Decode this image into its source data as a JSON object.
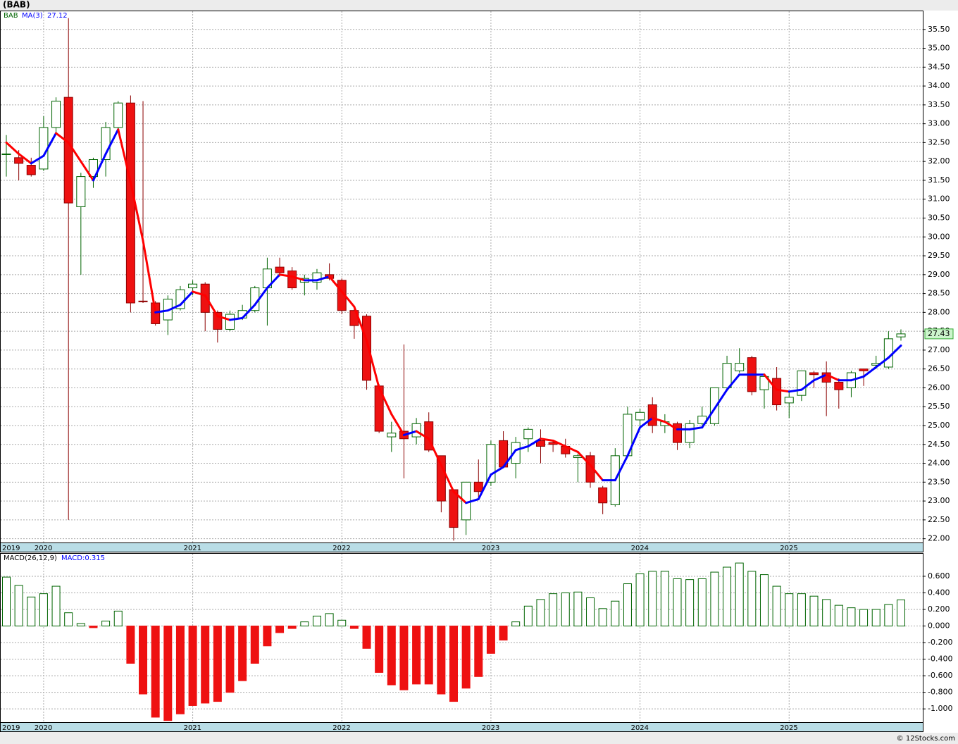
{
  "chart_data": [
    {
      "type": "candlestick",
      "title": "(BAB)",
      "categories": [
        "2019",
        null,
        null,
        "2020",
        null,
        null,
        null,
        null,
        null,
        null,
        null,
        null,
        null,
        null,
        null,
        "2021",
        null,
        null,
        null,
        null,
        null,
        null,
        null,
        null,
        null,
        null,
        null,
        "2022",
        null,
        null,
        null,
        null,
        null,
        null,
        null,
        null,
        null,
        null,
        null,
        "2023",
        null,
        null,
        null,
        null,
        null,
        null,
        null,
        null,
        null,
        null,
        null,
        "2024",
        null,
        null,
        null,
        null,
        null,
        null,
        null,
        null,
        null,
        null,
        null,
        "2025",
        null,
        null,
        null,
        null,
        null,
        null,
        null,
        null,
        null
      ],
      "series": [
        {
          "name": "BAB",
          "type": "candlestick",
          "up_color": "#ffffff",
          "down_color": "#ee1111",
          "outline_up": "#006400",
          "outline_down": "#8b0000",
          "open": [
            32.2,
            32.1,
            31.9,
            31.8,
            32.9,
            33.7,
            30.8,
            31.6,
            32.05,
            32.9,
            33.55,
            28.3,
            28.25,
            27.8,
            28.1,
            28.65,
            28.75,
            28.0,
            27.55,
            27.85,
            28.05,
            28.65,
            29.2,
            29.1,
            28.8,
            28.8,
            29.0,
            28.85,
            28.05,
            27.9,
            26.05,
            24.7,
            24.85,
            24.7,
            25.1,
            24.2,
            23.3,
            22.5,
            23.5,
            23.5,
            24.6,
            24.0,
            24.65,
            24.6,
            24.55,
            24.45,
            24.15,
            24.2,
            23.35,
            22.9,
            24.2,
            25.15,
            25.55,
            25.0,
            25.05,
            24.55,
            25.05,
            25.05,
            26.0,
            26.45,
            26.8,
            25.95,
            26.25,
            25.6,
            25.8,
            26.4,
            26.4,
            26.15,
            26.0,
            26.5,
            26.6,
            26.55,
            27.35
          ],
          "high": [
            32.7,
            32.3,
            32.1,
            33.2,
            33.7,
            35.8,
            31.7,
            32.1,
            33.05,
            33.6,
            33.75,
            33.6,
            28.3,
            28.45,
            28.7,
            28.85,
            28.8,
            28.05,
            28.05,
            28.2,
            28.7,
            29.45,
            29.45,
            29.2,
            29.0,
            29.15,
            29.3,
            28.9,
            28.1,
            27.95,
            26.1,
            25.1,
            27.15,
            25.2,
            25.35,
            24.2,
            23.3,
            23.5,
            24.1,
            24.6,
            24.85,
            24.7,
            24.95,
            24.9,
            24.6,
            24.65,
            24.25,
            24.3,
            23.4,
            24.4,
            25.5,
            25.45,
            25.75,
            25.3,
            25.1,
            25.15,
            25.5,
            26.0,
            26.85,
            27.05,
            26.85,
            26.35,
            26.55,
            25.9,
            26.45,
            26.45,
            26.7,
            26.25,
            26.45,
            26.5,
            26.85,
            27.5,
            27.55
          ],
          "low": [
            31.6,
            31.5,
            31.6,
            31.75,
            32.7,
            22.5,
            29.0,
            31.3,
            31.6,
            32.8,
            28.0,
            28.25,
            27.65,
            27.4,
            28.05,
            28.45,
            27.5,
            27.2,
            27.5,
            27.8,
            28.0,
            27.65,
            28.95,
            28.6,
            28.45,
            28.6,
            28.85,
            27.95,
            27.3,
            25.95,
            24.8,
            24.3,
            23.6,
            24.5,
            24.3,
            22.7,
            21.95,
            22.1,
            23.1,
            23.4,
            23.9,
            23.6,
            24.3,
            24.0,
            24.3,
            24.15,
            23.5,
            23.35,
            22.65,
            22.85,
            24.2,
            24.95,
            24.8,
            24.8,
            24.35,
            24.4,
            25.0,
            25.0,
            25.95,
            26.4,
            25.8,
            25.45,
            25.4,
            25.2,
            25.65,
            26.0,
            25.25,
            25.45,
            25.75,
            26.05,
            26.5,
            26.5,
            27.25
          ],
          "close": [
            32.2,
            31.95,
            31.65,
            32.9,
            33.6,
            30.9,
            31.6,
            32.05,
            32.9,
            33.55,
            28.25,
            28.28,
            27.7,
            28.35,
            28.6,
            28.75,
            28.0,
            27.55,
            27.95,
            28.05,
            28.65,
            29.15,
            29.05,
            28.65,
            28.9,
            29.05,
            28.9,
            28.05,
            27.65,
            26.2,
            24.85,
            24.8,
            24.65,
            25.05,
            24.35,
            23.0,
            22.3,
            23.5,
            23.25,
            24.5,
            23.9,
            24.55,
            24.9,
            24.45,
            24.5,
            24.25,
            24.2,
            23.5,
            22.95,
            24.2,
            25.3,
            25.35,
            25.0,
            25.1,
            24.55,
            25.05,
            25.25,
            26.0,
            26.65,
            26.65,
            25.9,
            26.3,
            25.55,
            25.75,
            26.45,
            26.35,
            26.15,
            25.95,
            26.4,
            26.45,
            26.65,
            27.3,
            27.43
          ]
        },
        {
          "name": "MA(3)",
          "type": "line",
          "up_color": "#0000ff",
          "down_color": "#ff0000",
          "values": [
            32.5,
            32.2,
            31.95,
            32.15,
            32.75,
            32.5,
            32.0,
            31.5,
            32.2,
            32.85,
            31.45,
            29.9,
            28.0,
            28.05,
            28.2,
            28.55,
            28.45,
            27.9,
            27.8,
            27.85,
            28.2,
            28.65,
            29.0,
            28.95,
            28.85,
            28.85,
            28.95,
            28.55,
            28.15,
            27.25,
            26.0,
            25.3,
            24.75,
            24.85,
            24.65,
            23.95,
            23.25,
            22.95,
            23.05,
            23.7,
            23.9,
            24.35,
            24.45,
            24.65,
            24.6,
            24.45,
            24.3,
            23.95,
            23.55,
            23.55,
            24.2,
            24.95,
            25.2,
            25.1,
            24.9,
            24.9,
            24.95,
            25.45,
            25.95,
            26.35,
            26.35,
            26.35,
            25.95,
            25.9,
            25.95,
            26.2,
            26.35,
            26.2,
            26.2,
            26.3,
            26.55,
            26.8,
            27.12
          ]
        }
      ],
      "ylim": [
        21.9,
        36.0
      ],
      "yticks": [
        {
          "value": 22,
          "label": "22.00"
        },
        {
          "value": 22.5,
          "label": "22.50"
        },
        {
          "value": 23,
          "label": "23.00"
        },
        {
          "value": 23.5,
          "label": "23.50"
        },
        {
          "value": 24,
          "label": "24.00"
        },
        {
          "value": 24.5,
          "label": "24.50"
        },
        {
          "value": 25,
          "label": "25.00"
        },
        {
          "value": 25.5,
          "label": "25.50"
        },
        {
          "value": 26,
          "label": "26.00"
        },
        {
          "value": 26.5,
          "label": "26.50"
        },
        {
          "value": 27,
          "label": "27.00"
        },
        {
          "value": 27.5,
          "label": "27.50"
        },
        {
          "value": 28,
          "label": "28.00"
        },
        {
          "value": 28.5,
          "label": "28.50"
        },
        {
          "value": 29,
          "label": "29.00"
        },
        {
          "value": 29.5,
          "label": "29.50"
        },
        {
          "value": 30,
          "label": "30.00"
        },
        {
          "value": 30.5,
          "label": "30.50"
        },
        {
          "value": 31,
          "label": "31.00"
        },
        {
          "value": 31.5,
          "label": "31.50"
        },
        {
          "value": 32,
          "label": "32.00"
        },
        {
          "value": 32.5,
          "label": "32.50"
        },
        {
          "value": 33,
          "label": "33.00"
        },
        {
          "value": 33.5,
          "label": "33.50"
        },
        {
          "value": 34,
          "label": "34.00"
        },
        {
          "value": 34.5,
          "label": "34.50"
        },
        {
          "value": 35,
          "label": "35.00"
        },
        {
          "value": 35.5,
          "label": "35.50"
        }
      ],
      "grid": true
    },
    {
      "type": "bar",
      "title": "MACD(26,12,9)",
      "categories": [
        "2019",
        null,
        null,
        "2020",
        null,
        null,
        null,
        null,
        null,
        null,
        null,
        null,
        null,
        null,
        null,
        "2021",
        null,
        null,
        null,
        null,
        null,
        null,
        null,
        null,
        null,
        null,
        null,
        "2022",
        null,
        null,
        null,
        null,
        null,
        null,
        null,
        null,
        null,
        null,
        null,
        "2023",
        null,
        null,
        null,
        null,
        null,
        null,
        null,
        null,
        null,
        null,
        null,
        "2024",
        null,
        null,
        null,
        null,
        null,
        null,
        null,
        null,
        null,
        null,
        null,
        "2025",
        null,
        null,
        null,
        null,
        null,
        null,
        null,
        null,
        null
      ],
      "series": [
        {
          "name": "MACD:0.315",
          "pos_color": "#006400",
          "neg_color": "#ee1111",
          "values": [
            0.59,
            0.49,
            0.35,
            0.39,
            0.48,
            0.16,
            0.03,
            -0.02,
            0.06,
            0.18,
            -0.45,
            -0.82,
            -1.1,
            -1.14,
            -1.06,
            -0.96,
            -0.93,
            -0.91,
            -0.8,
            -0.66,
            -0.45,
            -0.24,
            -0.08,
            -0.03,
            0.05,
            0.12,
            0.15,
            0.07,
            -0.03,
            -0.27,
            -0.56,
            -0.71,
            -0.77,
            -0.7,
            -0.7,
            -0.82,
            -0.91,
            -0.75,
            -0.61,
            -0.33,
            -0.17,
            0.05,
            0.24,
            0.32,
            0.39,
            0.4,
            0.41,
            0.34,
            0.21,
            0.3,
            0.51,
            0.63,
            0.66,
            0.66,
            0.57,
            0.56,
            0.57,
            0.65,
            0.71,
            0.76,
            0.66,
            0.62,
            0.48,
            0.39,
            0.39,
            0.36,
            0.32,
            0.25,
            0.22,
            0.2,
            0.2,
            0.26,
            0.315
          ]
        }
      ],
      "ylim": [
        -1.16,
        0.88
      ],
      "yticks": [
        {
          "value": -1,
          "label": "-1.000"
        },
        {
          "value": -0.8,
          "label": "-0.800"
        },
        {
          "value": -0.6,
          "label": "-0.600"
        },
        {
          "value": -0.4,
          "label": "-0.400"
        },
        {
          "value": -0.2,
          "label": "-0.200"
        },
        {
          "value": 0,
          "label": "0.000"
        },
        {
          "value": 0.2,
          "label": "0.200"
        },
        {
          "value": 0.4,
          "label": "0.400"
        },
        {
          "value": 0.6,
          "label": "0.600"
        }
      ],
      "grid": true
    }
  ],
  "footer": "© 12Stocks.com"
}
